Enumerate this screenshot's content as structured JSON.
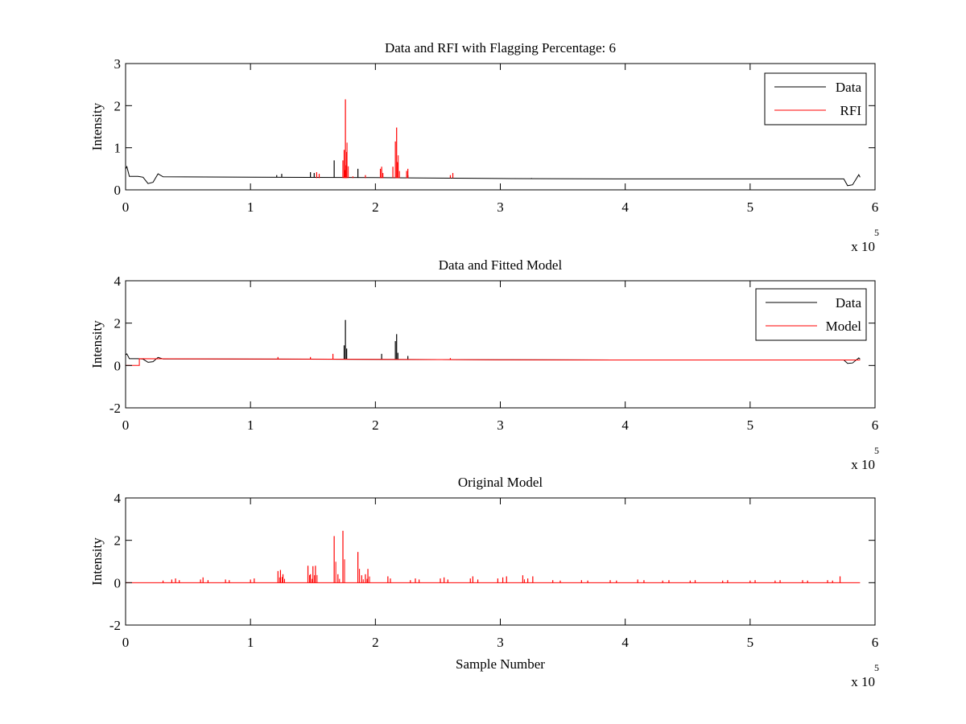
{
  "chart_data": [
    {
      "type": "line",
      "title": "Data and RFI with Flagging Percentage: 6",
      "xlabel": "",
      "ylabel": "Intensity",
      "xlim": [
        0,
        6
      ],
      "ylim": [
        0,
        3
      ],
      "x_multiplier": "x 10",
      "x_exponent": "5",
      "xticks": [
        "0",
        "1",
        "2",
        "3",
        "4",
        "5",
        "6"
      ],
      "yticks": [
        "0",
        "1",
        "2",
        "3"
      ],
      "series": [
        {
          "name": "Data",
          "color": "#000000",
          "kind": "baseline_with_spikes",
          "baseline": [
            [
              0.0,
              0.5
            ],
            [
              0.01,
              0.55
            ],
            [
              0.03,
              0.32
            ],
            [
              0.1,
              0.32
            ],
            [
              0.14,
              0.3
            ],
            [
              0.18,
              0.15
            ],
            [
              0.22,
              0.18
            ],
            [
              0.26,
              0.38
            ],
            [
              0.3,
              0.31
            ],
            [
              1.0,
              0.3
            ],
            [
              2.0,
              0.29
            ],
            [
              3.0,
              0.27
            ],
            [
              4.0,
              0.26
            ],
            [
              5.0,
              0.26
            ],
            [
              5.75,
              0.26
            ],
            [
              5.78,
              0.1
            ],
            [
              5.82,
              0.12
            ],
            [
              5.87,
              0.36
            ],
            [
              5.88,
              0.3
            ]
          ],
          "spikes": [
            [
              1.21,
              0.35
            ],
            [
              1.25,
              0.38
            ],
            [
              1.48,
              0.42
            ],
            [
              1.51,
              0.4
            ],
            [
              1.67,
              0.7
            ],
            [
              1.86,
              0.5
            ],
            [
              2.26,
              0.35
            ],
            [
              3.25,
              0.28
            ]
          ]
        },
        {
          "name": "RFI",
          "color": "#ff0000",
          "kind": "spikes",
          "base": 0.28,
          "spikes": [
            [
              1.53,
              0.42
            ],
            [
              1.55,
              0.38
            ],
            [
              1.74,
              0.7
            ],
            [
              1.75,
              0.95
            ],
            [
              1.76,
              2.15
            ],
            [
              1.77,
              0.9
            ],
            [
              1.82,
              0.32
            ],
            [
              1.92,
              0.35
            ],
            [
              2.04,
              0.5
            ],
            [
              2.05,
              0.55
            ],
            [
              2.06,
              0.4
            ],
            [
              2.14,
              0.55
            ],
            [
              2.16,
              1.15
            ],
            [
              2.17,
              1.48
            ],
            [
              2.18,
              0.65
            ],
            [
              2.25,
              0.45
            ],
            [
              2.26,
              0.5
            ],
            [
              2.6,
              0.35
            ],
            [
              2.62,
              0.4
            ]
          ]
        }
      ],
      "legend": [
        "Data",
        "RFI"
      ],
      "legend_position": "top-right"
    },
    {
      "type": "line",
      "title": "Data and Fitted Model",
      "xlabel": "",
      "ylabel": "Intensity",
      "xlim": [
        0,
        6
      ],
      "ylim": [
        -2,
        4
      ],
      "x_multiplier": "x 10",
      "x_exponent": "5",
      "xticks": [
        "0",
        "1",
        "2",
        "3",
        "4",
        "5",
        "6"
      ],
      "yticks": [
        "-2",
        "0",
        "2",
        "4"
      ],
      "series": [
        {
          "name": "Data",
          "color": "#000000",
          "kind": "baseline_with_spikes",
          "baseline": [
            [
              0.0,
              0.5
            ],
            [
              0.01,
              0.55
            ],
            [
              0.03,
              0.32
            ],
            [
              0.1,
              0.32
            ],
            [
              0.14,
              0.3
            ],
            [
              0.18,
              0.15
            ],
            [
              0.22,
              0.18
            ],
            [
              0.26,
              0.38
            ],
            [
              0.3,
              0.31
            ],
            [
              1.0,
              0.3
            ],
            [
              2.0,
              0.29
            ],
            [
              3.0,
              0.27
            ],
            [
              4.0,
              0.26
            ],
            [
              5.0,
              0.26
            ],
            [
              5.75,
              0.26
            ],
            [
              5.78,
              0.1
            ],
            [
              5.82,
              0.12
            ],
            [
              5.87,
              0.36
            ],
            [
              5.88,
              0.3
            ]
          ],
          "spikes": [
            [
              1.75,
              0.95
            ],
            [
              1.76,
              2.15
            ],
            [
              1.77,
              0.8
            ],
            [
              2.05,
              0.55
            ],
            [
              2.16,
              1.15
            ],
            [
              2.17,
              1.48
            ],
            [
              2.18,
              0.6
            ],
            [
              2.26,
              0.45
            ]
          ]
        },
        {
          "name": "Model",
          "color": "#ff0000",
          "kind": "model_line",
          "step": [
            [
              0.0,
              0.0
            ],
            [
              0.11,
              0.0
            ],
            [
              0.11,
              0.32
            ]
          ],
          "baseline": [
            [
              0.11,
              0.32
            ],
            [
              1.0,
              0.31
            ],
            [
              2.0,
              0.29
            ],
            [
              3.0,
              0.27
            ],
            [
              4.0,
              0.26
            ],
            [
              5.0,
              0.26
            ],
            [
              5.88,
              0.26
            ]
          ],
          "spikes": [
            [
              1.22,
              0.4
            ],
            [
              1.48,
              0.4
            ],
            [
              1.66,
              0.55
            ],
            [
              2.6,
              0.35
            ]
          ]
        }
      ],
      "legend": [
        "Data",
        "Model"
      ],
      "legend_position": "top-right"
    },
    {
      "type": "line",
      "title": "Original Model",
      "xlabel": "Sample Number",
      "ylabel": "Intensity",
      "xlim": [
        0,
        6
      ],
      "ylim": [
        -2,
        4
      ],
      "x_multiplier": "x 10",
      "x_exponent": "5",
      "xticks": [
        "0",
        "1",
        "2",
        "3",
        "4",
        "5",
        "6"
      ],
      "yticks": [
        "-2",
        "0",
        "2",
        "4"
      ],
      "series": [
        {
          "name": "Original Model",
          "color": "#ff0000",
          "kind": "spikes",
          "base": 0.0,
          "baseline_range": [
            0.0,
            5.88
          ],
          "spikes": [
            [
              0.3,
              0.1
            ],
            [
              0.37,
              0.15
            ],
            [
              0.4,
              0.2
            ],
            [
              0.43,
              0.12
            ],
            [
              0.6,
              0.15
            ],
            [
              0.62,
              0.25
            ],
            [
              0.66,
              0.12
            ],
            [
              0.8,
              0.15
            ],
            [
              0.83,
              0.12
            ],
            [
              1.0,
              0.15
            ],
            [
              1.03,
              0.2
            ],
            [
              1.22,
              0.55
            ],
            [
              1.24,
              0.6
            ],
            [
              1.26,
              0.4
            ],
            [
              1.46,
              0.8
            ],
            [
              1.48,
              0.4
            ],
            [
              1.5,
              0.78
            ],
            [
              1.52,
              0.8
            ],
            [
              1.67,
              2.2
            ],
            [
              1.7,
              0.4
            ],
            [
              1.74,
              2.45
            ],
            [
              1.86,
              1.45
            ],
            [
              1.89,
              0.35
            ],
            [
              1.92,
              0.4
            ],
            [
              1.94,
              0.65
            ],
            [
              2.1,
              0.3
            ],
            [
              2.12,
              0.2
            ],
            [
              2.28,
              0.12
            ],
            [
              2.32,
              0.2
            ],
            [
              2.35,
              0.15
            ],
            [
              2.52,
              0.2
            ],
            [
              2.55,
              0.25
            ],
            [
              2.58,
              0.15
            ],
            [
              2.76,
              0.2
            ],
            [
              2.78,
              0.3
            ],
            [
              2.82,
              0.15
            ],
            [
              2.98,
              0.2
            ],
            [
              3.02,
              0.25
            ],
            [
              3.05,
              0.3
            ],
            [
              3.18,
              0.35
            ],
            [
              3.22,
              0.2
            ],
            [
              3.26,
              0.3
            ],
            [
              3.42,
              0.12
            ],
            [
              3.48,
              0.1
            ],
            [
              3.65,
              0.12
            ],
            [
              3.7,
              0.1
            ],
            [
              3.88,
              0.12
            ],
            [
              3.93,
              0.1
            ],
            [
              4.1,
              0.15
            ],
            [
              4.15,
              0.12
            ],
            [
              4.3,
              0.1
            ],
            [
              4.35,
              0.12
            ],
            [
              4.52,
              0.1
            ],
            [
              4.56,
              0.12
            ],
            [
              4.78,
              0.1
            ],
            [
              4.82,
              0.12
            ],
            [
              5.0,
              0.1
            ],
            [
              5.04,
              0.12
            ],
            [
              5.2,
              0.1
            ],
            [
              5.24,
              0.12
            ],
            [
              5.42,
              0.12
            ],
            [
              5.46,
              0.1
            ],
            [
              5.62,
              0.12
            ],
            [
              5.66,
              0.1
            ],
            [
              5.72,
              0.3
            ]
          ]
        }
      ],
      "legend": [],
      "legend_position": "none"
    }
  ]
}
